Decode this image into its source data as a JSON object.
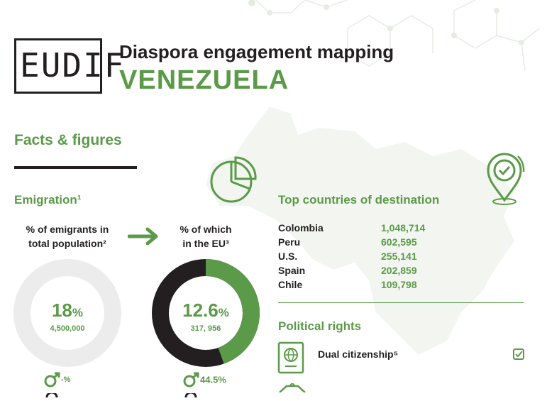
{
  "header": {
    "logo_text": "EUDIF",
    "title": "Diaspora engagement mapping",
    "country": "VENEZUELA"
  },
  "facts": {
    "section_title": "Facts & figures",
    "emigration_heading": "Emigration¹",
    "left_label_line1": "% of emigrants in",
    "left_label_line2": "total population²",
    "left_value": "18",
    "left_value_unit": "%",
    "left_sub": "4,500,000",
    "left_male": "-%",
    "right_label_line1": "% of which",
    "right_label_line2": "in the EU³",
    "right_value": "12.6",
    "right_value_unit": "%",
    "right_sub": "317, 956",
    "right_male": "44.5%",
    "right_share_fraction": 0.445
  },
  "destinations": {
    "heading": "Top countries of destination",
    "rows": [
      {
        "country": "Colombia",
        "value": "1,048,714"
      },
      {
        "country": "Peru",
        "value": "602,595"
      },
      {
        "country": "U.S.",
        "value": "255,141"
      },
      {
        "country": "Spain",
        "value": "202,859"
      },
      {
        "country": "Chile",
        "value": "109,798"
      }
    ]
  },
  "political": {
    "heading": "Political rights",
    "dual_citizenship_label": "Dual citizenship⁵"
  },
  "colors": {
    "green": "#5b9a48",
    "dark": "#231f20",
    "light_gray": "#ececec"
  }
}
